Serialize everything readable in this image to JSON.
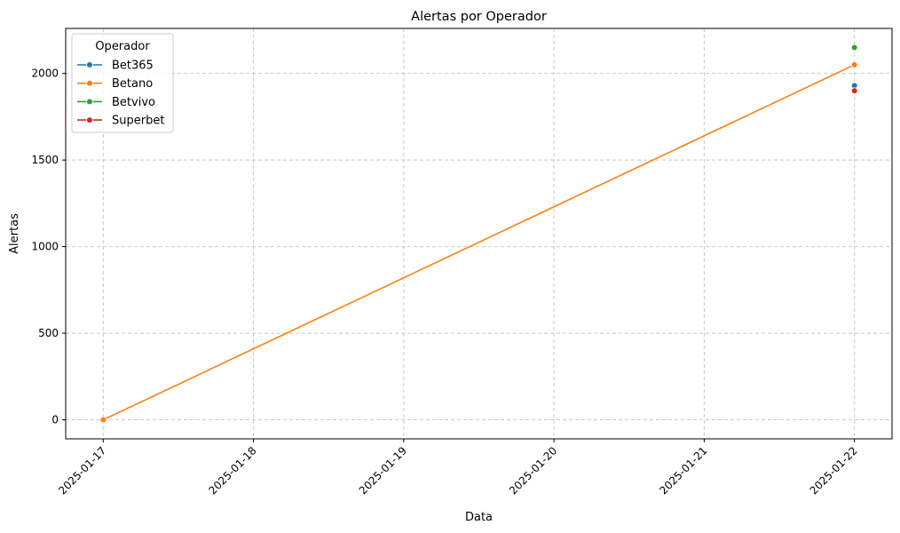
{
  "chart_data": {
    "type": "line",
    "title": "Alertas por Operador",
    "xlabel": "Data",
    "ylabel": "Alertas",
    "x_ticks": [
      "2025-01-17",
      "2025-01-18",
      "2025-01-19",
      "2025-01-20",
      "2025-01-21",
      "2025-01-22"
    ],
    "y_ticks": [
      0,
      500,
      1000,
      1500,
      2000
    ],
    "xlim": [
      "2025-01-16T18:00",
      "2025-01-22T06:00"
    ],
    "ylim": [
      -110,
      2260
    ],
    "grid": true,
    "legend": {
      "title": "Operador",
      "placement": "top-left"
    },
    "series": [
      {
        "name": "Bet365",
        "color": "#1f77b4",
        "points": [
          {
            "x": "2025-01-22",
            "y": 1930
          }
        ]
      },
      {
        "name": "Betano",
        "color": "#ff7f0e",
        "points": [
          {
            "x": "2025-01-17",
            "y": 0
          },
          {
            "x": "2025-01-22",
            "y": 2050
          }
        ]
      },
      {
        "name": "Betvivo",
        "color": "#2ca02c",
        "points": [
          {
            "x": "2025-01-22",
            "y": 2150
          }
        ]
      },
      {
        "name": "Superbet",
        "color": "#d62728",
        "points": [
          {
            "x": "2025-01-22",
            "y": 1900
          }
        ]
      }
    ]
  }
}
